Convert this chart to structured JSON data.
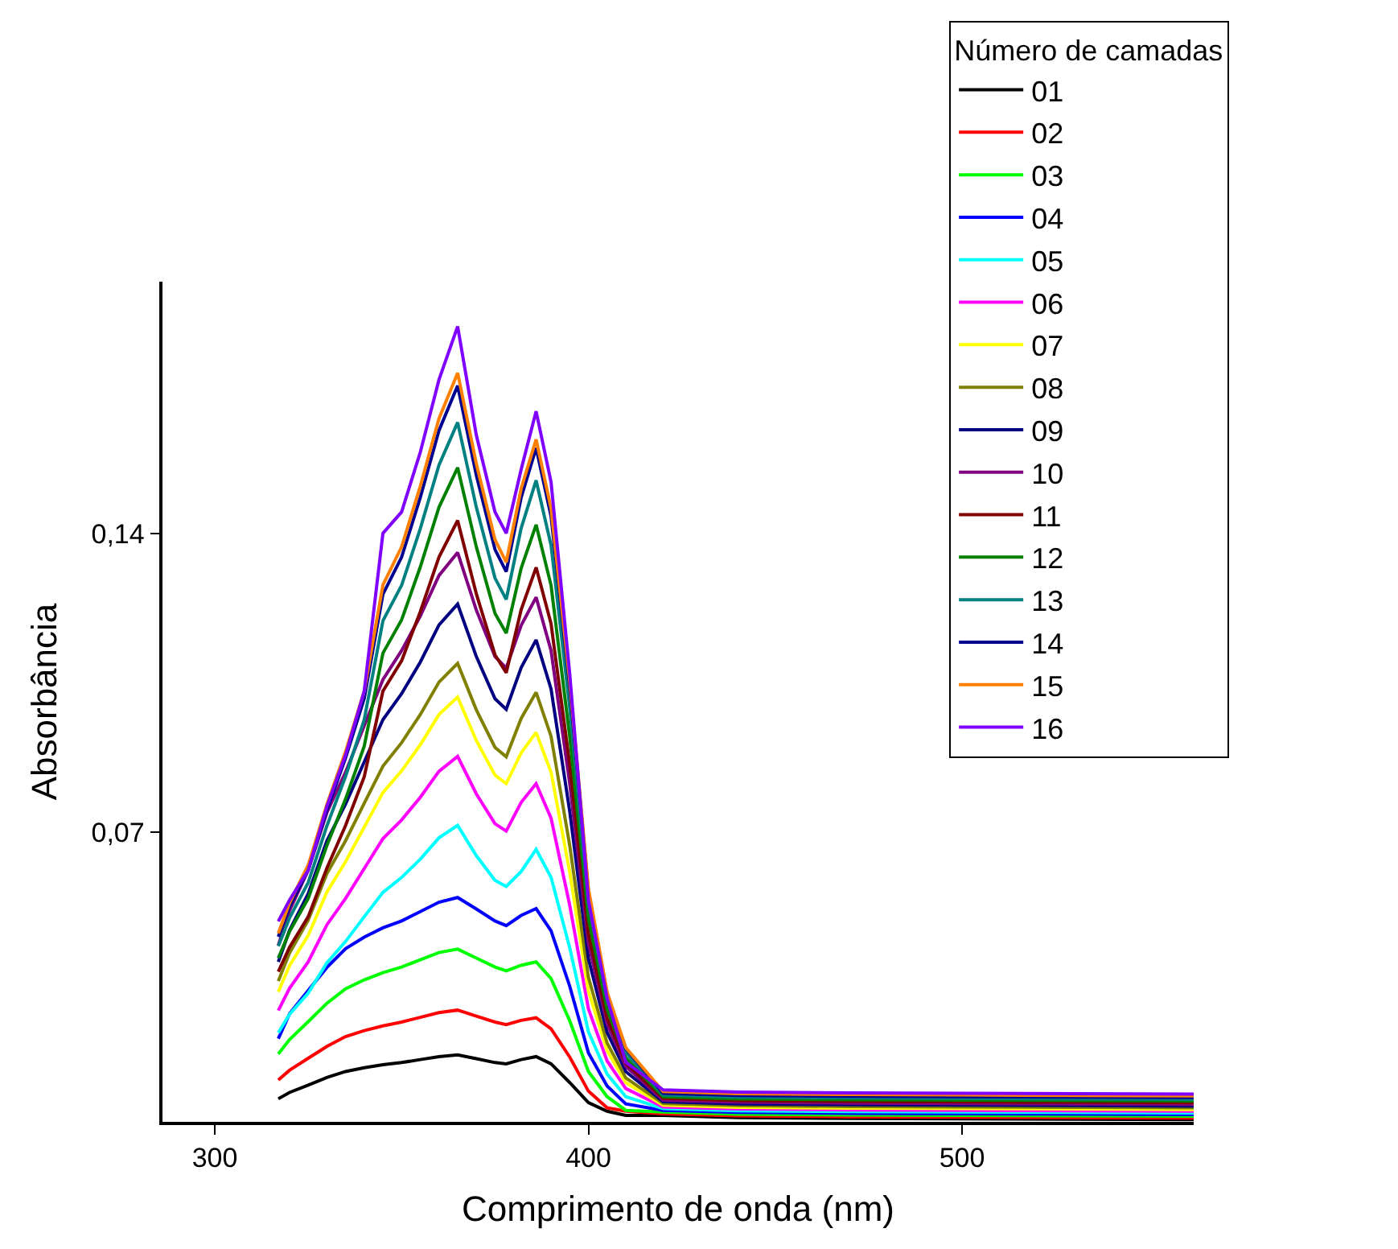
{
  "chart_data": {
    "type": "line",
    "xlabel": "Comprimento de onda (nm)",
    "ylabel": "Absorbância",
    "legend_title": "Número de camadas",
    "legend": "top right",
    "grid": false,
    "marker": "none",
    "line_style": "solid",
    "x": [
      317,
      320,
      325,
      330,
      335,
      340,
      345,
      350,
      355,
      360,
      365,
      370,
      375,
      378,
      382,
      386,
      390,
      395,
      400,
      405,
      410,
      420,
      440,
      470,
      500,
      530,
      562
    ],
    "xlim": [
      286,
      562
    ],
    "xticks": [
      300,
      400,
      500
    ],
    "ylim": [
      0.002,
      0.199
    ],
    "yticks": [
      {
        "value": 0.07,
        "label": "0,07"
      },
      {
        "value": 0.14,
        "label": "0,14"
      }
    ],
    "series": [
      {
        "name": "01",
        "color": "#000000",
        "values": [
          0.0074,
          0.0089,
          0.0106,
          0.0124,
          0.0138,
          0.0147,
          0.0154,
          0.0159,
          0.0166,
          0.0173,
          0.0177,
          0.0168,
          0.0159,
          0.0156,
          0.0166,
          0.0173,
          0.0156,
          0.0112,
          0.0065,
          0.0045,
          0.0035,
          0.0035,
          0.003,
          0.0028,
          0.0027,
          0.0026,
          0.0025
        ]
      },
      {
        "name": "02",
        "color": "#ff0000",
        "values": [
          0.0118,
          0.0141,
          0.0169,
          0.0197,
          0.022,
          0.0234,
          0.0245,
          0.0254,
          0.0265,
          0.0276,
          0.0282,
          0.0268,
          0.0254,
          0.0248,
          0.0258,
          0.0264,
          0.0238,
          0.0172,
          0.0092,
          0.0053,
          0.0045,
          0.0039,
          0.0034,
          0.0032,
          0.0031,
          0.003,
          0.0029
        ]
      },
      {
        "name": "03",
        "color": "#00ff00",
        "values": [
          0.0179,
          0.0213,
          0.0255,
          0.0298,
          0.0332,
          0.0353,
          0.037,
          0.0383,
          0.04,
          0.0417,
          0.0425,
          0.0404,
          0.0383,
          0.0374,
          0.0387,
          0.0395,
          0.0356,
          0.0257,
          0.0138,
          0.0079,
          0.0047,
          0.0043,
          0.0038,
          0.0036,
          0.0035,
          0.0034,
          0.0033
        ]
      },
      {
        "name": "04",
        "color": "#0000ff",
        "values": [
          0.0215,
          0.0273,
          0.0328,
          0.0382,
          0.0426,
          0.0453,
          0.0475,
          0.0491,
          0.0513,
          0.0535,
          0.0546,
          0.0519,
          0.0491,
          0.048,
          0.0504,
          0.052,
          0.0468,
          0.0338,
          0.0182,
          0.0104,
          0.0062,
          0.0047,
          0.0042,
          0.004,
          0.0039,
          0.0038,
          0.0037
        ]
      },
      {
        "name": "05",
        "color": "#00ffff",
        "values": [
          0.0229,
          0.0272,
          0.0322,
          0.0393,
          0.0443,
          0.0501,
          0.0558,
          0.0593,
          0.0636,
          0.0686,
          0.0715,
          0.0644,
          0.0586,
          0.0572,
          0.0607,
          0.0659,
          0.0593,
          0.0428,
          0.0231,
          0.0132,
          0.0079,
          0.0051,
          0.0046,
          0.0044,
          0.0043,
          0.0042,
          0.0041
        ]
      },
      {
        "name": "06",
        "color": "#ff00ff",
        "values": [
          0.0281,
          0.0333,
          0.0395,
          0.0482,
          0.0544,
          0.0614,
          0.0684,
          0.0728,
          0.0781,
          0.0842,
          0.0877,
          0.0789,
          0.0719,
          0.0702,
          0.0769,
          0.0813,
          0.0732,
          0.0528,
          0.0285,
          0.0163,
          0.0098,
          0.0055,
          0.005,
          0.0048,
          0.0047,
          0.0046,
          0.0045
        ]
      },
      {
        "name": "07",
        "color": "#ffff00",
        "values": [
          0.0325,
          0.0386,
          0.0457,
          0.0559,
          0.063,
          0.0711,
          0.0792,
          0.0843,
          0.0904,
          0.0975,
          0.1016,
          0.0914,
          0.0833,
          0.0813,
          0.0885,
          0.0933,
          0.084,
          0.0606,
          0.0327,
          0.0187,
          0.0112,
          0.0059,
          0.0054,
          0.0052,
          0.0051,
          0.005,
          0.0049
        ]
      },
      {
        "name": "08",
        "color": "#808000",
        "values": [
          0.035,
          0.0416,
          0.0493,
          0.0602,
          0.0679,
          0.0767,
          0.0854,
          0.0909,
          0.0975,
          0.1051,
          0.1095,
          0.0986,
          0.0898,
          0.0876,
          0.0966,
          0.1027,
          0.0924,
          0.0668,
          0.0359,
          0.0205,
          0.0123,
          0.0063,
          0.0058,
          0.0056,
          0.0055,
          0.0054,
          0.0053
        ]
      },
      {
        "name": "09",
        "color": "#000080",
        "values": [
          0.0395,
          0.0469,
          0.0555,
          0.0679,
          0.0765,
          0.0864,
          0.0963,
          0.1024,
          0.1098,
          0.1185,
          0.1234,
          0.1111,
          0.1012,
          0.0987,
          0.1085,
          0.115,
          0.1035,
          0.0748,
          0.0403,
          0.023,
          0.0138,
          0.0067,
          0.0062,
          0.006,
          0.0059,
          0.0058,
          0.0057
        ]
      },
      {
        "name": "10",
        "color": "#800080",
        "values": [
          0.0434,
          0.0515,
          0.061,
          0.0745,
          0.084,
          0.0949,
          0.1057,
          0.1125,
          0.1206,
          0.1301,
          0.1355,
          0.122,
          0.1111,
          0.1084,
          0.1184,
          0.125,
          0.1125,
          0.0813,
          0.0438,
          0.025,
          0.015,
          0.0071,
          0.0066,
          0.0064,
          0.0063,
          0.0062,
          0.0061
        ]
      },
      {
        "name": "11",
        "color": "#800000",
        "values": [
          0.0372,
          0.0429,
          0.0501,
          0.0615,
          0.0715,
          0.0829,
          0.103,
          0.1101,
          0.1216,
          0.1344,
          0.143,
          0.1258,
          0.1115,
          0.1073,
          0.1221,
          0.132,
          0.1188,
          0.0858,
          0.0462,
          0.0264,
          0.0158,
          0.0075,
          0.007,
          0.0068,
          0.0067,
          0.0066,
          0.0065
        ]
      },
      {
        "name": "12",
        "color": "#008000",
        "values": [
          0.0404,
          0.0466,
          0.0544,
          0.0668,
          0.0777,
          0.0901,
          0.1119,
          0.1197,
          0.1321,
          0.1461,
          0.1554,
          0.1368,
          0.1212,
          0.1166,
          0.1318,
          0.142,
          0.1278,
          0.0923,
          0.0497,
          0.0284,
          0.017,
          0.0079,
          0.0074,
          0.0072,
          0.0071,
          0.007,
          0.0069
        ]
      },
      {
        "name": "13",
        "color": "#008080",
        "values": [
          0.0432,
          0.0498,
          0.0581,
          0.0714,
          0.083,
          0.0963,
          0.1195,
          0.1278,
          0.1411,
          0.156,
          0.166,
          0.1461,
          0.1295,
          0.1245,
          0.1412,
          0.1524,
          0.1372,
          0.0991,
          0.0533,
          0.0305,
          0.0183,
          0.0083,
          0.0078,
          0.0076,
          0.0075,
          0.0074,
          0.0073
        ]
      },
      {
        "name": "14",
        "color": "#000090",
        "values": [
          0.0454,
          0.0524,
          0.0611,
          0.0751,
          0.0873,
          0.1013,
          0.1257,
          0.1344,
          0.1484,
          0.1641,
          0.1746,
          0.1536,
          0.1362,
          0.131,
          0.1484,
          0.16,
          0.144,
          0.104,
          0.056,
          0.032,
          0.0192,
          0.0087,
          0.0082,
          0.008,
          0.0079,
          0.0078,
          0.0077
        ]
      },
      {
        "name": "15",
        "color": "#ff8000",
        "values": [
          0.0462,
          0.0533,
          0.0622,
          0.0764,
          0.0888,
          0.103,
          0.1279,
          0.1368,
          0.151,
          0.1669,
          0.1776,
          0.1563,
          0.1385,
          0.1332,
          0.1505,
          0.162,
          0.1458,
          0.1053,
          0.0567,
          0.0324,
          0.0194,
          0.0091,
          0.0086,
          0.0084,
          0.0083,
          0.0082,
          0.0081
        ]
      },
      {
        "name": "16",
        "color": "#8000ff",
        "values": [
          0.049,
          0.054,
          0.061,
          0.076,
          0.088,
          0.103,
          0.14,
          0.145,
          0.159,
          0.176,
          0.1885,
          0.163,
          0.145,
          0.14,
          0.155,
          0.1686,
          0.152,
          0.107,
          0.054,
          0.031,
          0.016,
          0.0095,
          0.009,
          0.0088,
          0.0087,
          0.0086,
          0.0085
        ]
      }
    ]
  }
}
